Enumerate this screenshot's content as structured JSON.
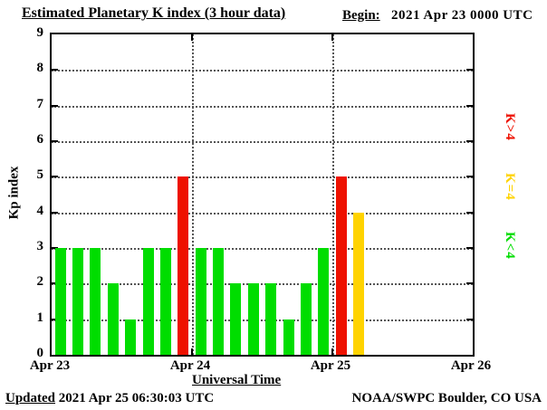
{
  "header": {
    "title": "Estimated Planetary K index (3 hour data)",
    "begin_label": "Begin:",
    "begin_value": "2021 Apr 23 0000 UTC"
  },
  "footer": {
    "updated_label": "Updated",
    "updated_value": "2021 Apr 25 06:30:03 UTC",
    "credit": "NOAA/SWPC Boulder, CO USA"
  },
  "chart_data": {
    "type": "bar",
    "title": "Estimated Planetary K index (3 hour data)",
    "xlabel": "Universal Time",
    "ylabel": "Kp index",
    "ylim": [
      0,
      9
    ],
    "yticks": [
      0,
      1,
      2,
      3,
      4,
      5,
      6,
      7,
      8,
      9
    ],
    "xticks": [
      "Apr 23",
      "Apr 24",
      "Apr 25",
      "Apr 26"
    ],
    "grid": "dotted horizontal lines at each integer, dotted vertical lines at day boundaries",
    "legend_position": "right, rotated 90deg",
    "bars_per_day": 8,
    "interval_hours": 3,
    "days": [
      "Apr 23",
      "Apr 24",
      "Apr 25"
    ],
    "values": [
      3,
      3,
      3,
      2,
      1,
      3,
      3,
      5,
      3,
      3,
      2,
      2,
      2,
      1,
      2,
      3,
      5,
      4
    ],
    "colors": {
      "low": "#00dd00",
      "mid": "#ffd300",
      "high": "#ee1100"
    },
    "legend": [
      {
        "label": "K>4",
        "color": "#ee1100"
      },
      {
        "label": "K=4",
        "color": "#ffd300"
      },
      {
        "label": "K<4",
        "color": "#00dd00"
      }
    ]
  }
}
